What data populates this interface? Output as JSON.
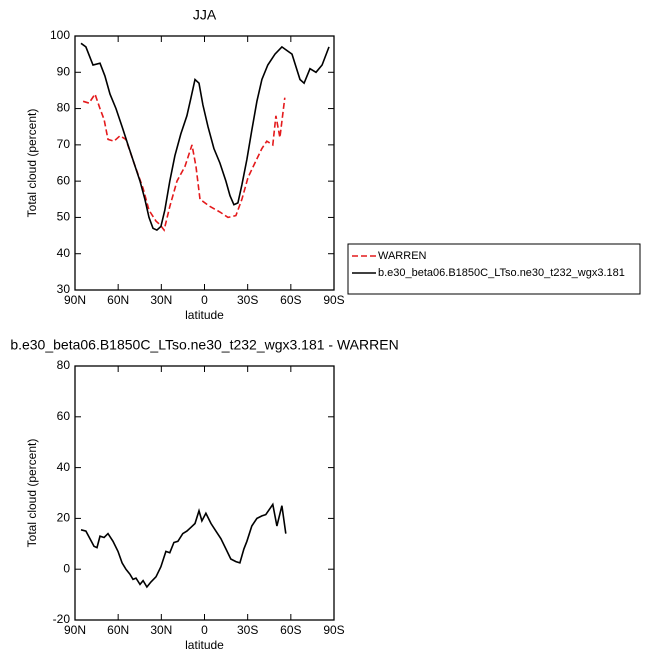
{
  "chart_data": [
    {
      "type": "line",
      "title": "JJA",
      "x_label": "latitude",
      "y_label": "Total cloud (percent)",
      "xlim": [
        90,
        -90
      ],
      "ylim": [
        30,
        100
      ],
      "xticks": [
        {
          "value": 90,
          "label": "90N"
        },
        {
          "value": 60,
          "label": "60N"
        },
        {
          "value": 30,
          "label": "30N"
        },
        0,
        {
          "value": -30,
          "label": "30S"
        },
        {
          "value": -60,
          "label": "60S"
        },
        {
          "value": -90,
          "label": "90S"
        }
      ],
      "yticks": [
        30,
        40,
        50,
        60,
        70,
        80,
        90,
        100
      ],
      "legend": "right",
      "series": [
        {
          "name": "WARREN",
          "color": "#e41a1c",
          "line_style": "dashed",
          "x": [
            84.4,
            80.3,
            76.1,
            72.6,
            69.8,
            67.1,
            62.9,
            58.7,
            54.6,
            49,
            42.7,
            38.6,
            33.7,
            30.9,
            28.1,
            24.1,
            19.1,
            13.6,
            8.7,
            5.9,
            3.1,
            -3.8,
            -10.7,
            -16.3,
            -21.8,
            -26,
            -30.2,
            -35,
            -39.9,
            -43.3,
            -47.5,
            -49.6,
            -52.4,
            -55.8
          ],
          "values": [
            82,
            81.5,
            84,
            80,
            77,
            71.5,
            71,
            72.5,
            71.5,
            65,
            58,
            52,
            49,
            48,
            46.5,
            53,
            60,
            64,
            70,
            64,
            55,
            53,
            51.5,
            50,
            50.5,
            55,
            61,
            65,
            69,
            71,
            70,
            78,
            72,
            83
          ]
        },
        {
          "name": "b.e30_beta06.B1850C_LTso.ne30_t232_wgx3.181",
          "color": "#000000",
          "line_style": "solid",
          "x": [
            85.8,
            82.4,
            77.5,
            72.6,
            69.2,
            65.7,
            61.5,
            57.3,
            53.2,
            49,
            44.8,
            41.4,
            38.6,
            35.8,
            33.1,
            30.3,
            27.6,
            24.1,
            20.6,
            16.5,
            12.2,
            9.4,
            6.6,
            3.8,
            1.1,
            -2.4,
            -6.5,
            -10.7,
            -14.9,
            -17.7,
            -20.4,
            -23.2,
            -26,
            -29.5,
            -32.9,
            -36.4,
            -39.9,
            -44,
            -49,
            -53.8,
            -57.3,
            -60.8,
            -66.4,
            -69.2,
            -73.3,
            -77.5,
            -81.7,
            -86.5
          ],
          "values": [
            98,
            97,
            92,
            92.5,
            89,
            84,
            80,
            75,
            70,
            65,
            60,
            55,
            50,
            47,
            46.5,
            47.5,
            52,
            60,
            67,
            73,
            78,
            83,
            88,
            87,
            81,
            75,
            69,
            65,
            60,
            56,
            53.5,
            54,
            59,
            66,
            74,
            82,
            88,
            92,
            95,
            97,
            96,
            95,
            88,
            87,
            91,
            90,
            92,
            97
          ]
        }
      ]
    },
    {
      "type": "line",
      "title": "b.e30_beta06.B1850C_LTso.ne30_t232_wgx3.181 - WARREN",
      "x_label": "latitude",
      "y_label": "Total cloud (percent)",
      "xlim": [
        90,
        -90
      ],
      "ylim": [
        -20,
        80
      ],
      "xticks": [
        {
          "value": 90,
          "label": "90N"
        },
        {
          "value": 60,
          "label": "60N"
        },
        {
          "value": 30,
          "label": "30N"
        },
        0,
        {
          "value": -30,
          "label": "30S"
        },
        {
          "value": -60,
          "label": "60S"
        },
        {
          "value": -90,
          "label": "90S"
        }
      ],
      "yticks": [
        -20,
        0,
        20,
        40,
        60,
        80
      ],
      "series": [
        {
          "color": "#000000",
          "line_style": "solid",
          "x": [
            85.8,
            82.4,
            79.6,
            76.8,
            74.7,
            72.6,
            69.8,
            67.1,
            63.6,
            60.1,
            57.3,
            54.6,
            51.8,
            49.7,
            47.6,
            44.8,
            42.7,
            40,
            37.2,
            33.7,
            30.3,
            26.8,
            24.1,
            21.3,
            18.5,
            15.1,
            12.2,
            9.4,
            6.6,
            3.8,
            1.8,
            -1,
            -4.5,
            -7.9,
            -11.4,
            -14.9,
            -18.3,
            -21.8,
            -24.6,
            -27.4,
            -29.5,
            -32.9,
            -36.4,
            -39.9,
            -42.6,
            -47.5,
            -50.3,
            -53.8,
            -56.5
          ],
          "values": [
            15.5,
            15,
            12,
            9,
            8.5,
            13,
            12.5,
            14,
            11,
            7,
            2.5,
            0,
            -2,
            -4,
            -3.5,
            -6,
            -4.5,
            -7,
            -5,
            -3,
            1,
            7,
            6.5,
            10.5,
            11,
            14,
            15,
            16.5,
            18,
            23,
            19,
            22,
            18,
            15,
            12,
            8,
            4,
            3,
            2.5,
            8,
            11,
            17,
            20,
            21,
            21.5,
            25.5,
            17,
            25,
            14
          ]
        }
      ]
    }
  ]
}
